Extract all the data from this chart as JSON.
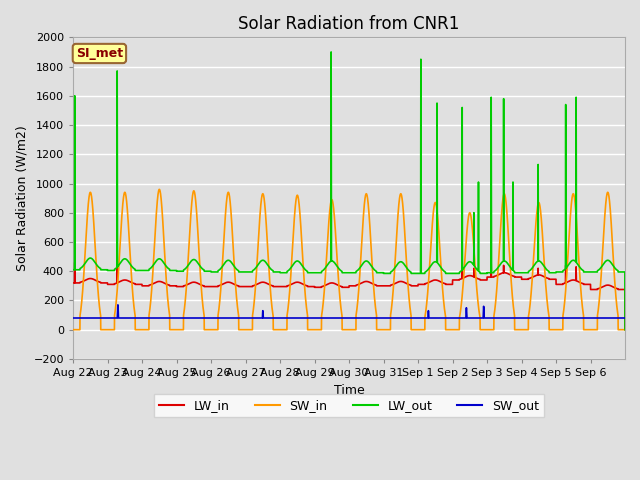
{
  "title": "Solar Radiation from CNR1",
  "xlabel": "Time",
  "ylabel": "Solar Radiation (W/m2)",
  "ylim": [
    -200,
    2000
  ],
  "background_color": "#e0e0e0",
  "plot_bg_color": "#e0e0e0",
  "grid_color": "white",
  "legend_label": "SI_met",
  "legend_bg": "#ffff99",
  "legend_border": "#996633",
  "series_colors": {
    "LW_in": "#dd0000",
    "SW_in": "#ff9900",
    "LW_out": "#00cc00",
    "SW_out": "#0000cc"
  },
  "x_tick_labels": [
    "Aug 22",
    "Aug 23",
    "Aug 24",
    "Aug 25",
    "Aug 26",
    "Aug 27",
    "Aug 28",
    "Aug 29",
    "Aug 30",
    "Aug 31",
    "Sep 1",
    "Sep 2",
    "Sep 3",
    "Sep 4",
    "Sep 5",
    "Sep 6"
  ],
  "title_fontsize": 12,
  "axis_fontsize": 9,
  "tick_fontsize": 8,
  "lw_series": 1.2
}
